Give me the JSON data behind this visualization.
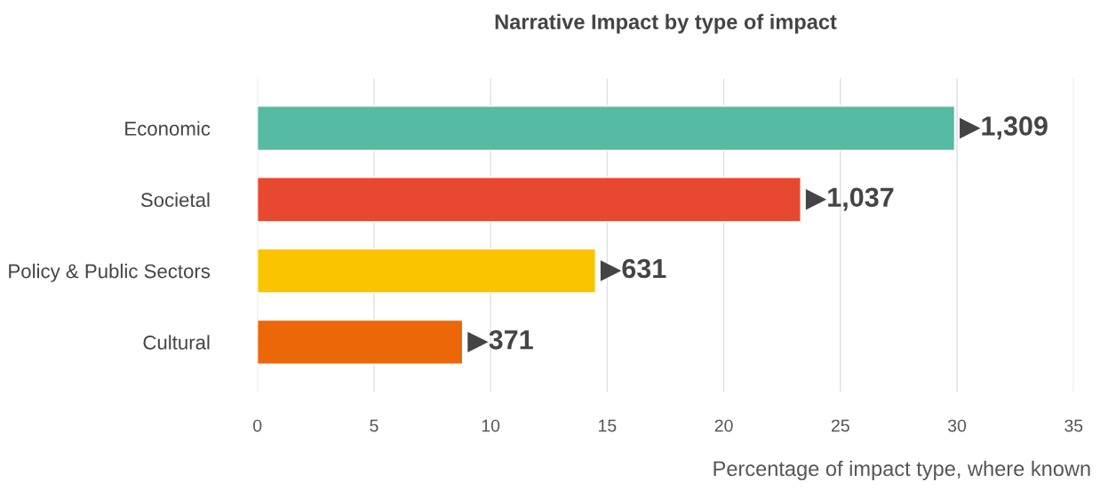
{
  "chart_data": {
    "type": "bar",
    "orientation": "horizontal",
    "title": "Narrative Impact by type of impact",
    "xlabel": "Percentage of impact type, where known",
    "categories": [
      "Economic",
      "Societal",
      "Policy & Public Sectors",
      "Cultural"
    ],
    "values": [
      29.9,
      23.3,
      14.5,
      8.8
    ],
    "colors": [
      "#55bba2",
      "#e8482f",
      "#fbc401",
      "#eb6708"
    ],
    "annotations": [
      {
        "text": "▶1,309",
        "x": 29.9,
        "y": "Economic"
      },
      {
        "text": "▶1,037",
        "x": 23.3,
        "y": "Societal"
      },
      {
        "text": "▶631",
        "x": 14.5,
        "y": "Policy & Public Sectors"
      },
      {
        "text": "▶371",
        "x": 8.8,
        "y": "Cultural"
      }
    ],
    "xlim": [
      0,
      35
    ],
    "xticks": [
      0,
      5,
      10,
      15,
      20,
      25,
      30,
      35
    ],
    "grid": "x"
  }
}
